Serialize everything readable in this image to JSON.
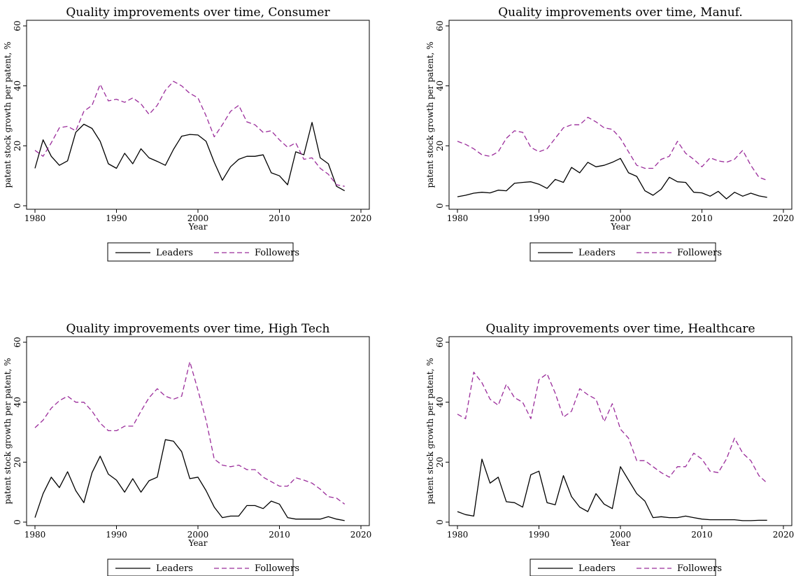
{
  "chart_data": [
    {
      "type": "line",
      "title": "Quality improvements over time, Consumer",
      "xlabel": "Year",
      "ylabel": "patent stock growth per patent, %",
      "xlim": [
        1980,
        2020
      ],
      "ylim": [
        0,
        60
      ],
      "xticks": [
        1980,
        1990,
        2000,
        2010,
        2020
      ],
      "yticks": [
        0,
        20,
        40,
        60
      ],
      "grid": false,
      "legend": "bottom",
      "x": [
        1980,
        1981,
        1982,
        1983,
        1984,
        1985,
        1986,
        1987,
        1988,
        1989,
        1990,
        1991,
        1992,
        1993,
        1994,
        1995,
        1996,
        1997,
        1998,
        1999,
        2000,
        2001,
        2002,
        2003,
        2004,
        2005,
        2006,
        2007,
        2008,
        2009,
        2010,
        2011,
        2012,
        2013,
        2014,
        2015,
        2016,
        2017,
        2018
      ],
      "series": [
        {
          "name": "Leaders",
          "style": "solid",
          "color": "#000000",
          "values": [
            12.5,
            22.0,
            16.5,
            13.5,
            15.0,
            24.5,
            27.2,
            25.8,
            21.5,
            14.0,
            12.5,
            17.5,
            14.0,
            19.0,
            16.0,
            14.8,
            13.5,
            18.8,
            23.2,
            23.8,
            23.6,
            21.5,
            14.5,
            8.5,
            13.0,
            15.5,
            16.5,
            16.5,
            17.0,
            11.0,
            10.0,
            7.0,
            18.0,
            17.0,
            27.8,
            16.0,
            14.0,
            6.5,
            5.0
          ]
        },
        {
          "name": "Followers",
          "style": "dashed",
          "color": "#9b2d9b",
          "values": [
            18.5,
            16.5,
            21.0,
            26.0,
            26.5,
            25.0,
            31.5,
            33.5,
            40.5,
            35.0,
            35.5,
            34.5,
            36.0,
            34.0,
            30.5,
            33.5,
            38.5,
            41.5,
            40.0,
            37.5,
            36.0,
            30.0,
            23.0,
            27.0,
            31.5,
            33.5,
            28.0,
            27.0,
            24.5,
            25.0,
            22.0,
            19.5,
            21.0,
            15.5,
            16.0,
            12.5,
            10.5,
            7.0,
            6.5
          ]
        }
      ]
    },
    {
      "type": "line",
      "title": "Quality improvements over time, Manuf.",
      "xlabel": "Year",
      "ylabel": "patent stock growth per patent, %",
      "xlim": [
        1980,
        2020
      ],
      "ylim": [
        0,
        60
      ],
      "xticks": [
        1980,
        1990,
        2000,
        2010,
        2020
      ],
      "yticks": [
        0,
        20,
        40,
        60
      ],
      "grid": false,
      "legend": "bottom",
      "x": [
        1980,
        1981,
        1982,
        1983,
        1984,
        1985,
        1986,
        1987,
        1988,
        1989,
        1990,
        1991,
        1992,
        1993,
        1994,
        1995,
        1996,
        1997,
        1998,
        1999,
        2000,
        2001,
        2002,
        2003,
        2004,
        2005,
        2006,
        2007,
        2008,
        2009,
        2010,
        2011,
        2012,
        2013,
        2014,
        2015,
        2016,
        2017,
        2018
      ],
      "series": [
        {
          "name": "Leaders",
          "style": "solid",
          "color": "#000000",
          "values": [
            3.0,
            3.5,
            4.2,
            4.5,
            4.3,
            5.2,
            5.0,
            7.5,
            7.8,
            8.0,
            7.2,
            5.8,
            8.8,
            7.8,
            12.8,
            11.0,
            14.5,
            13.0,
            13.5,
            14.5,
            15.8,
            11.0,
            9.8,
            5.0,
            3.5,
            5.5,
            9.5,
            8.0,
            7.8,
            4.5,
            4.3,
            3.2,
            4.8,
            2.3,
            4.5,
            3.2,
            4.2,
            3.3,
            2.8
          ]
        },
        {
          "name": "Followers",
          "style": "dashed",
          "color": "#9b2d9b",
          "values": [
            21.5,
            20.5,
            19.0,
            17.0,
            16.5,
            18.0,
            22.5,
            25.0,
            24.5,
            19.5,
            18.0,
            19.0,
            22.5,
            26.0,
            27.0,
            27.0,
            29.5,
            28.0,
            26.0,
            25.5,
            22.5,
            18.0,
            13.5,
            12.5,
            12.5,
            15.5,
            16.5,
            21.5,
            17.5,
            15.5,
            13.0,
            16.0,
            15.0,
            14.5,
            15.5,
            18.5,
            13.5,
            9.5,
            8.5
          ]
        }
      ]
    },
    {
      "type": "line",
      "title": "Quality improvements over time, High Tech",
      "xlabel": "Year",
      "ylabel": "patent stock growth per patent, %",
      "xlim": [
        1980,
        2020
      ],
      "ylim": [
        0,
        60
      ],
      "xticks": [
        1980,
        1990,
        2000,
        2010,
        2020
      ],
      "yticks": [
        0,
        20,
        40,
        60
      ],
      "grid": false,
      "legend": "bottom",
      "x": [
        1980,
        1981,
        1982,
        1983,
        1984,
        1985,
        1986,
        1987,
        1988,
        1989,
        1990,
        1991,
        1992,
        1993,
        1994,
        1995,
        1996,
        1997,
        1998,
        1999,
        2000,
        2001,
        2002,
        2003,
        2004,
        2005,
        2006,
        2007,
        2008,
        2009,
        2010,
        2011,
        2012,
        2013,
        2014,
        2015,
        2016,
        2017,
        2018
      ],
      "series": [
        {
          "name": "Leaders",
          "style": "solid",
          "color": "#000000",
          "values": [
            1.5,
            9.5,
            15.0,
            11.5,
            16.8,
            10.5,
            6.5,
            16.5,
            22.0,
            16.0,
            14.0,
            10.0,
            14.5,
            10.0,
            13.8,
            15.0,
            27.5,
            27.0,
            23.5,
            14.5,
            15.0,
            10.5,
            5.0,
            1.5,
            2.0,
            2.0,
            5.5,
            5.5,
            4.5,
            7.0,
            6.0,
            1.5,
            1.0,
            1.0,
            1.0,
            1.0,
            1.8,
            1.0,
            0.5
          ]
        },
        {
          "name": "Followers",
          "style": "dashed",
          "color": "#9b2d9b",
          "values": [
            31.5,
            34.0,
            38.0,
            40.5,
            42.0,
            40.0,
            40.0,
            37.0,
            33.0,
            30.5,
            30.5,
            32.0,
            32.0,
            37.0,
            41.5,
            44.5,
            42.0,
            41.0,
            42.0,
            53.5,
            44.0,
            34.0,
            21.0,
            19.0,
            18.5,
            19.0,
            17.5,
            17.5,
            15.0,
            13.5,
            12.0,
            12.0,
            14.8,
            14.0,
            13.0,
            11.0,
            8.5,
            8.0,
            6.0
          ]
        }
      ]
    },
    {
      "type": "line",
      "title": "Quality improvements over time, Healthcare",
      "xlabel": "Year",
      "ylabel": "patent stock growth per patent, %",
      "xlim": [
        1980,
        2020
      ],
      "ylim": [
        0,
        60
      ],
      "xticks": [
        1980,
        1990,
        2000,
        2010,
        2020
      ],
      "yticks": [
        0,
        20,
        40,
        60
      ],
      "grid": false,
      "legend": "bottom",
      "x": [
        1980,
        1981,
        1982,
        1983,
        1984,
        1985,
        1986,
        1987,
        1988,
        1989,
        1990,
        1991,
        1992,
        1993,
        1994,
        1995,
        1996,
        1997,
        1998,
        1999,
        2000,
        2001,
        2002,
        2003,
        2004,
        2005,
        2006,
        2007,
        2008,
        2009,
        2010,
        2011,
        2012,
        2013,
        2014,
        2015,
        2016,
        2017,
        2018
      ],
      "series": [
        {
          "name": "Leaders",
          "style": "solid",
          "color": "#000000",
          "values": [
            3.5,
            2.5,
            2.0,
            21.0,
            13.0,
            15.0,
            6.8,
            6.5,
            5.0,
            15.8,
            17.0,
            6.5,
            5.8,
            15.5,
            8.5,
            5.0,
            3.5,
            9.5,
            6.0,
            4.5,
            18.5,
            14.0,
            9.5,
            7.0,
            1.5,
            1.8,
            1.5,
            1.5,
            2.0,
            1.5,
            1.0,
            0.8,
            0.8,
            0.8,
            0.8,
            0.5,
            0.5,
            0.6,
            0.6
          ]
        },
        {
          "name": "Followers",
          "style": "dashed",
          "color": "#9b2d9b",
          "values": [
            36.0,
            34.5,
            50.0,
            46.5,
            41.0,
            39.0,
            46.0,
            41.5,
            40.0,
            34.5,
            47.5,
            49.5,
            43.0,
            35.0,
            37.0,
            44.5,
            42.5,
            41.0,
            33.5,
            39.5,
            31.0,
            28.0,
            20.5,
            20.5,
            18.5,
            16.5,
            15.0,
            18.5,
            18.5,
            23.0,
            21.0,
            17.0,
            16.5,
            21.0,
            28.0,
            23.0,
            20.5,
            15.5,
            13.0
          ]
        }
      ]
    }
  ]
}
